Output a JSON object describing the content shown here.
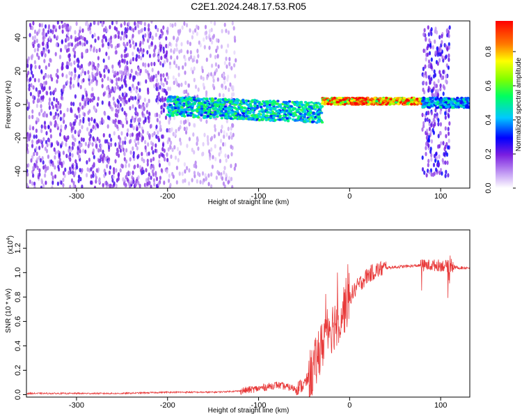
{
  "chart_data": [
    {
      "type": "heatmap",
      "title": "C2E1.2024.248.17.53.R05",
      "xlabel": "Height of straight line (km)",
      "ylabel": "Frequency (Hz)",
      "xlim": [
        -355,
        132
      ],
      "ylim": [
        -50,
        50
      ],
      "x_ticks": [
        -300,
        -200,
        -100,
        0,
        100
      ],
      "x_tick_labels": [
        "-300",
        "-200",
        "-100",
        "0",
        "100"
      ],
      "y_ticks": [
        -40,
        -20,
        0,
        20,
        40
      ],
      "y_tick_labels": [
        "-40",
        "-20",
        "0",
        "20",
        "40"
      ],
      "colorbar": {
        "label": "Normalized spectral amplitude",
        "range": [
          0,
          0.98
        ],
        "ticks": [
          0.0,
          0.2,
          0.4,
          0.6,
          0.8
        ],
        "tick_labels": [
          "0.0",
          "0.2",
          "0.4",
          "0.6",
          "0.8"
        ]
      },
      "regions": [
        {
          "x": [
            -355,
            -200
          ],
          "description_level": "broadband noise",
          "freq_spread": 50,
          "amplitude": 0.12
        },
        {
          "x": [
            -200,
            -125
          ],
          "freq_spread": 50,
          "amplitude": 0.06
        },
        {
          "x": [
            -200,
            -30
          ],
          "center_freq": [
            -1,
            -5
          ],
          "halfwidth": 6,
          "amplitude": 0.5
        },
        {
          "x": [
            -30,
            80
          ],
          "center_freq": 2,
          "halfwidth": 2,
          "amplitude": 0.9
        },
        {
          "x": [
            80,
            110
          ],
          "center_freq": 2,
          "freq_spread": 45,
          "amplitude": 0.15
        },
        {
          "x": [
            80,
            132
          ],
          "center_freq": 1,
          "halfwidth": 3,
          "amplitude": 0.45
        }
      ]
    },
    {
      "type": "line",
      "xlabel": "Height of straight line (km)",
      "ylabel": "SNR (10 * v/v)",
      "yscale_label": "(x10",
      "yscale_exp": "4",
      "xlim": [
        -355,
        132
      ],
      "ylim": [
        -0.02,
        1.35
      ],
      "x_ticks": [
        -300,
        -200,
        -100,
        0,
        100
      ],
      "x_tick_labels": [
        "-300",
        "-200",
        "-100",
        "0",
        "100"
      ],
      "y_ticks": [
        0.0,
        0.2,
        0.4,
        0.6,
        0.8,
        1.0,
        1.2
      ],
      "y_tick_labels": [
        "0.0",
        "0.2",
        "0.4",
        "0.6",
        "0.8",
        "1.0",
        "1.2"
      ],
      "series": [
        {
          "color": "#e83a3a",
          "x": [
            -355,
            -300,
            -250,
            -200,
            -150,
            -120,
            -100,
            -80,
            -60,
            -50,
            -40,
            -30,
            -25,
            -20,
            -10,
            0,
            10,
            20,
            30,
            40,
            60,
            80,
            100,
            110,
            120,
            132
          ],
          "y": [
            0.01,
            0.01,
            0.01,
            0.02,
            0.02,
            0.03,
            0.05,
            0.08,
            0.05,
            0.08,
            0.2,
            0.4,
            0.6,
            0.55,
            0.65,
            0.8,
            0.9,
            0.98,
            1.02,
            1.04,
            1.05,
            1.06,
            1.06,
            1.05,
            1.04,
            1.04
          ]
        }
      ]
    }
  ]
}
